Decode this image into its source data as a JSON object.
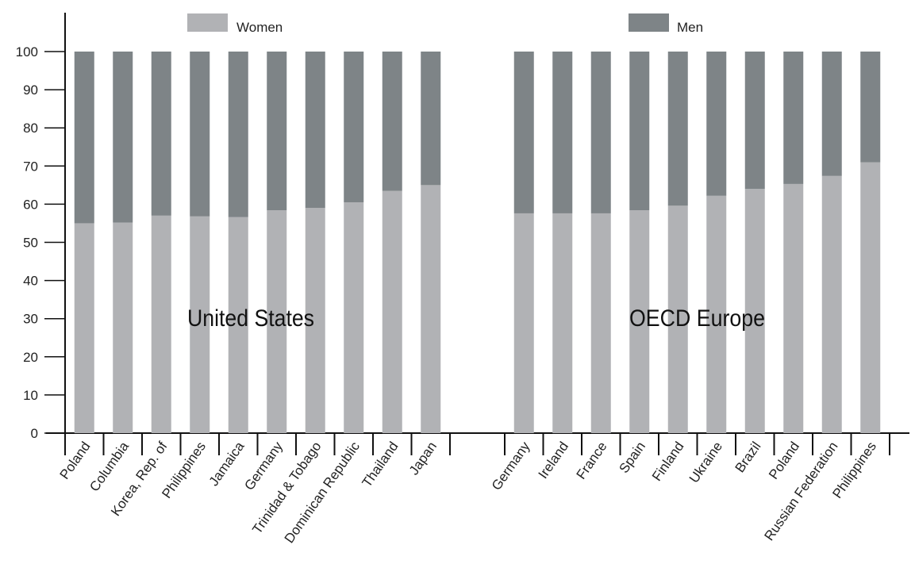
{
  "chart_data": {
    "type": "bar",
    "stacked": true,
    "ylim": [
      0,
      100
    ],
    "yticks": [
      0,
      10,
      20,
      30,
      40,
      50,
      60,
      70,
      80,
      90,
      100
    ],
    "legend": [
      {
        "name": "Women",
        "color": "#b1b2b5"
      },
      {
        "name": "Men",
        "color": "#7e8487"
      }
    ],
    "groups": [
      {
        "label": "United States",
        "categories": [
          "Poland",
          "Columbia",
          "Korea, Rep. of",
          "Philippines",
          "Jamaica",
          "Germany",
          "Trinidad & Tobago",
          "Dominican Republic",
          "Thailand",
          "Japan"
        ],
        "women": [
          55,
          55.2,
          57,
          56.8,
          56.6,
          58.4,
          59,
          60.5,
          63.5,
          65
        ],
        "men": [
          45,
          44.8,
          43,
          43.2,
          43.4,
          41.6,
          41,
          39.5,
          36.5,
          35
        ]
      },
      {
        "label": "OECD Europe",
        "categories": [
          "Germany",
          "Ireland",
          "France",
          "Spain",
          "Finland",
          "Ukraine",
          "Brazil",
          "Poland",
          "Russian Federation",
          "Philippines"
        ],
        "women": [
          57.6,
          57.6,
          57.6,
          58.4,
          59.6,
          62.2,
          64,
          65.3,
          67.4,
          71
        ],
        "men": [
          42.4,
          42.4,
          42.4,
          41.6,
          40.4,
          37.8,
          36,
          34.7,
          32.6,
          29
        ]
      }
    ]
  }
}
